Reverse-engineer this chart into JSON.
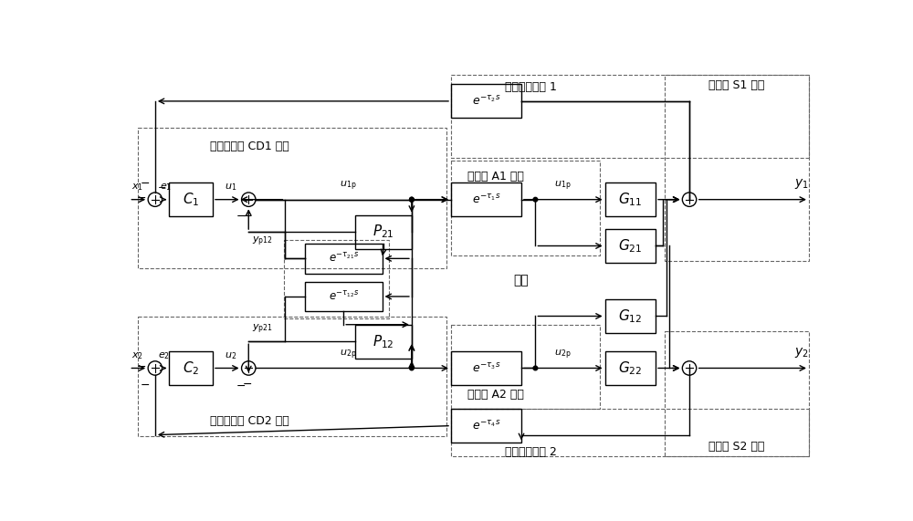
{
  "bg_color": "#ffffff",
  "lc": "#000000",
  "dc": "#666666",
  "figsize": [
    10.0,
    5.71
  ],
  "dpi": 100,
  "labels": {
    "x1": "$x_1$",
    "x2": "$x_2$",
    "e1": "$e_1$",
    "e2": "$e_2$",
    "u1": "$u_1$",
    "u2": "$u_2$",
    "u1p": "$u_{1\\mathrm{p}}$",
    "u2p": "$u_{2\\mathrm{p}}$",
    "y1": "$y_1$",
    "y2": "$y_2$",
    "yp12": "$y_{\\mathrm{p}12}$",
    "yp21": "$y_{\\mathrm{p}21}$",
    "C1": "$C_1$",
    "C2": "$C_2$",
    "P21": "$P_{21}$",
    "P12": "$P_{12}$",
    "G11": "$G_{11}$",
    "G12": "$G_{12}$",
    "G21": "$G_{21}$",
    "G22": "$G_{22}$",
    "tau2s": "$e^{-\\tau_2 s}$",
    "tau1s": "$e^{-\\tau_1 s}$",
    "tau3s": "$e^{-\\tau_3 s}$",
    "tau4s": "$e^{-\\tau_4 s}$",
    "tau21s": "$e^{-\\tau_{21} s}$",
    "tau12s": "$e^{-\\tau_{12} s}$",
    "CD1": "控制解耦器 CD1 节点",
    "CD2": "控制解耦器 CD2 节点",
    "A1": "执行器 A1 节点",
    "A2": "执行器 A2 节点",
    "S1": "传感器 S1 节点",
    "S2": "传感器 S2 节点",
    "loop1": "闭环控制回路 1",
    "loop2": "闭环控制回路 2",
    "network": "网络"
  }
}
